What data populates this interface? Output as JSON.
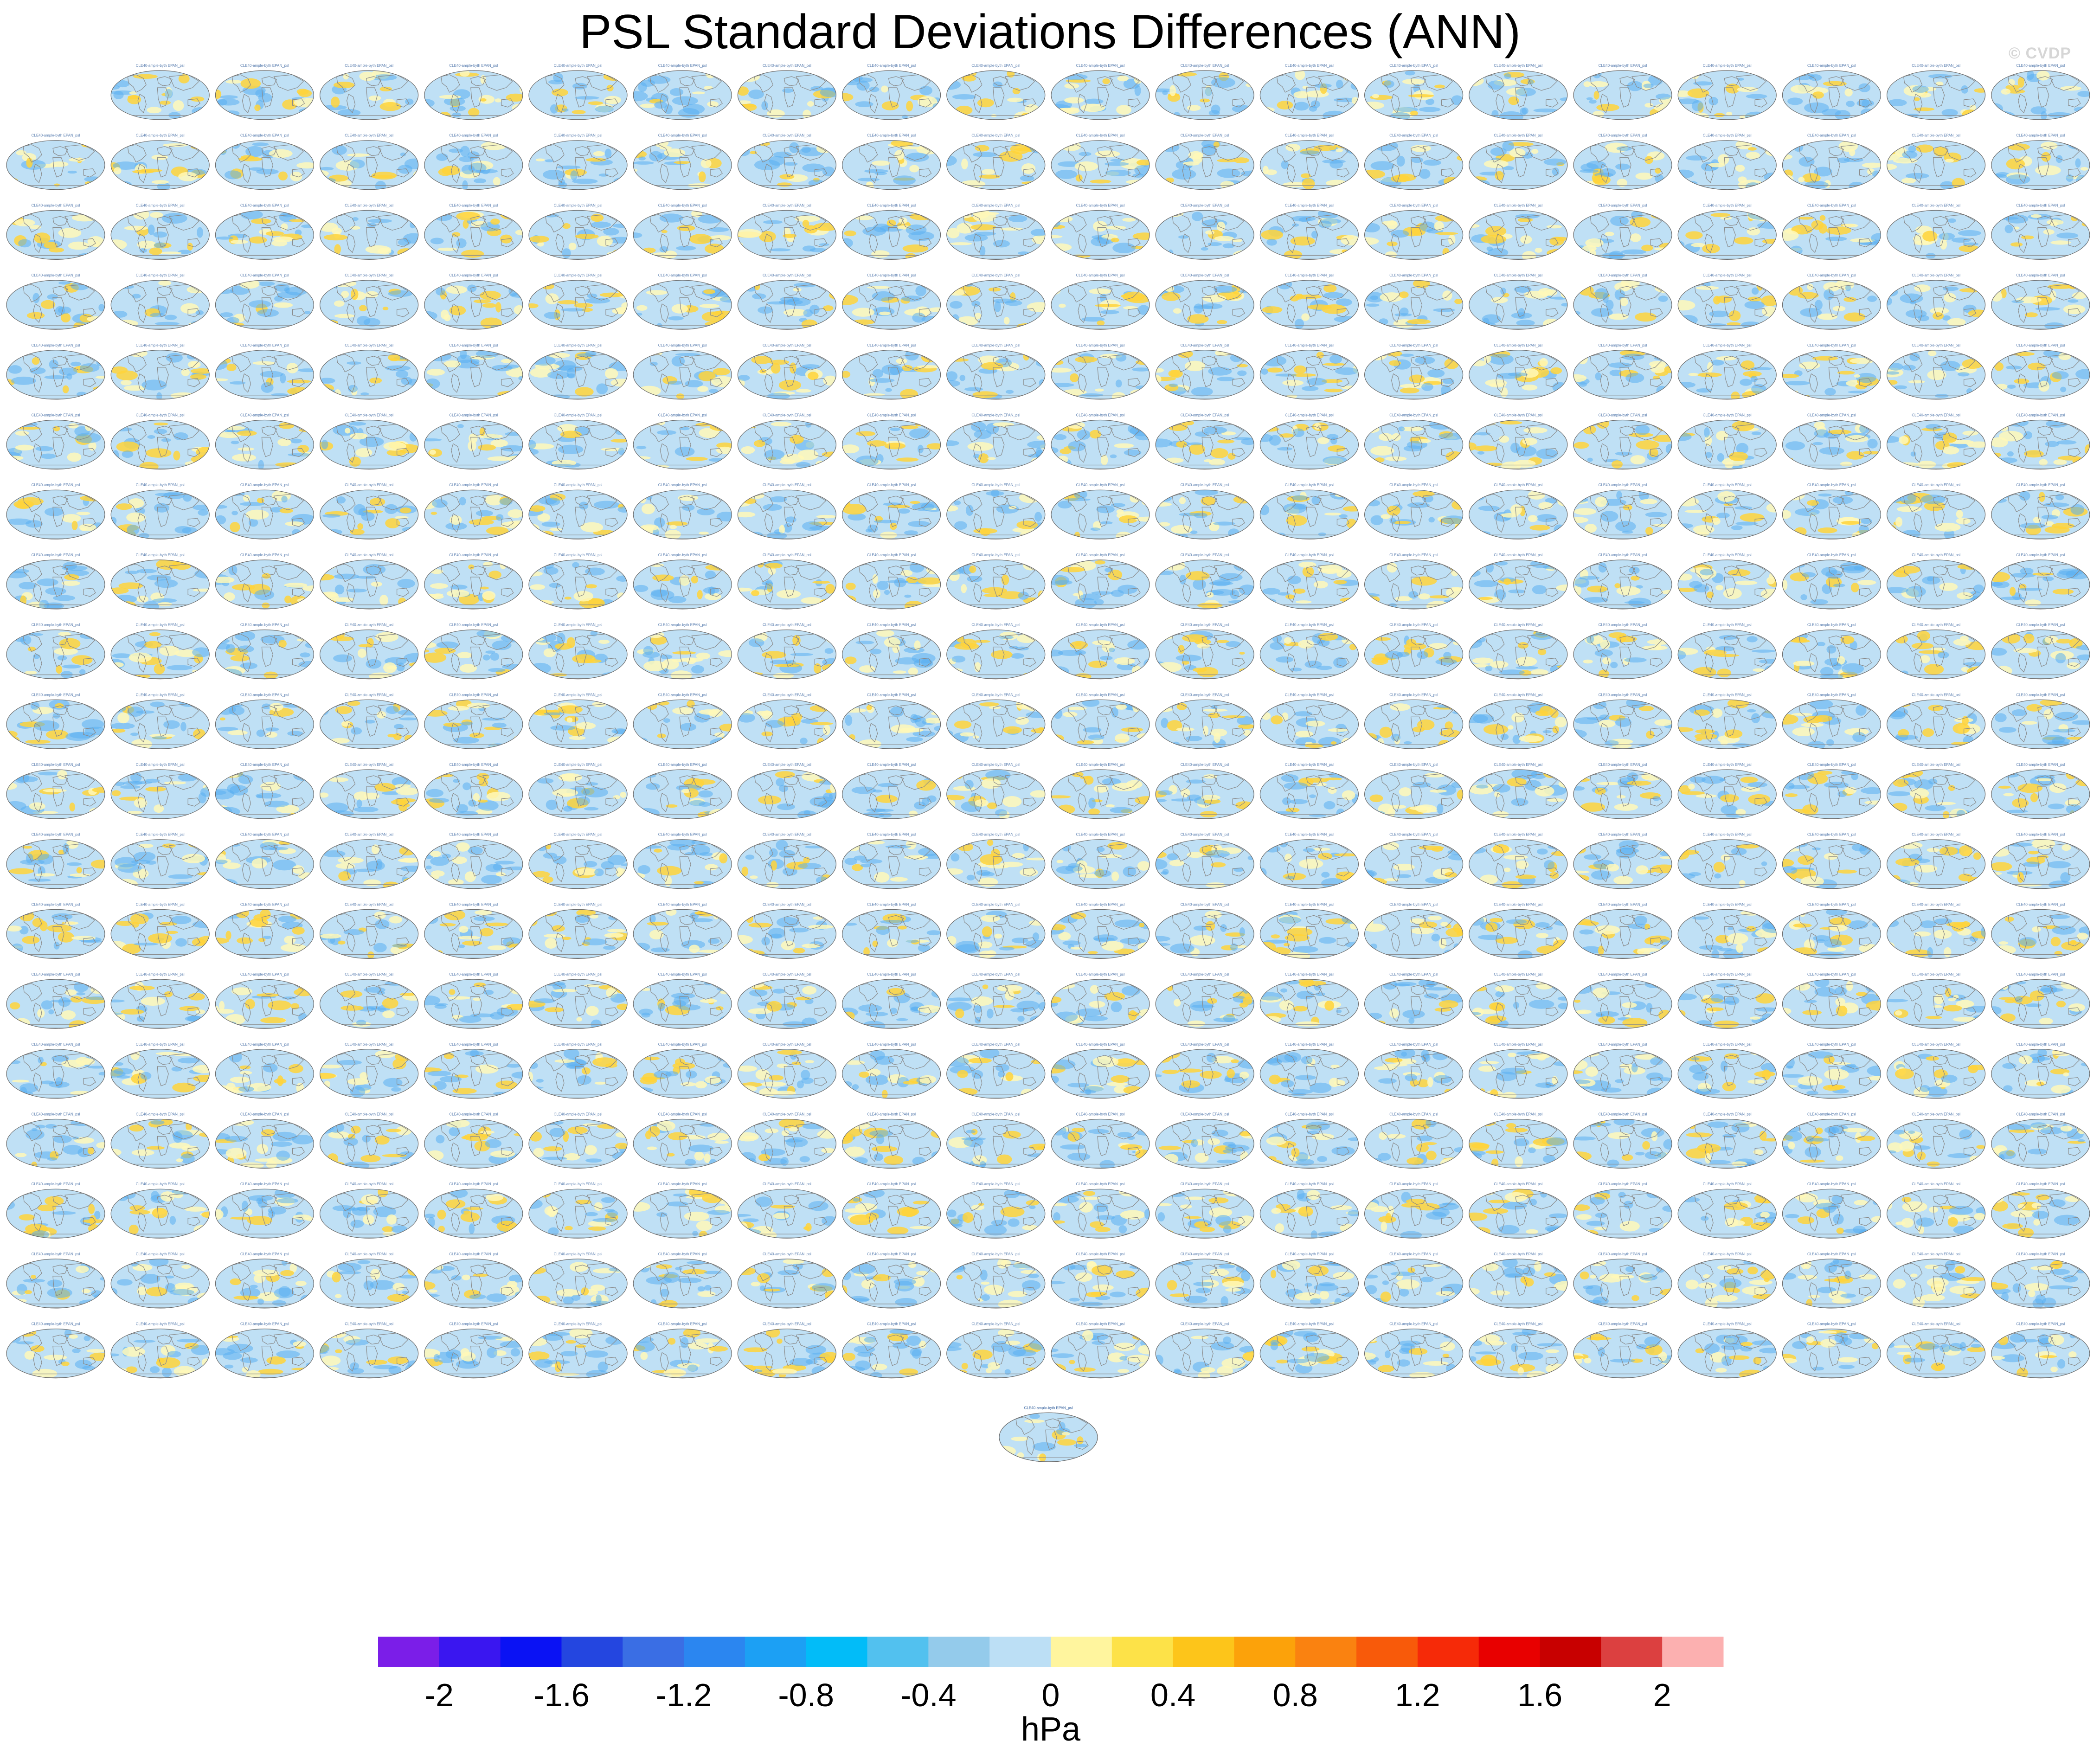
{
  "title": "PSL Standard Deviations Differences (ANN)",
  "watermark": "© CVDP",
  "panel_caption": "CLE40-ample-byth EPAN_psl",
  "panel_count": 381,
  "panel_colors": {
    "ocean": "#bfe0f5",
    "land": "#fff8b8",
    "positive": "#ffd43a",
    "negative": "#5aaef0",
    "coast": "#8a8a8a",
    "outline": "#6a6a6a"
  },
  "chart_data": {
    "type": "heatmap",
    "title": "PSL Standard Deviations Differences (ANN)",
    "colorbar": {
      "label": "hPa",
      "min": -2.2,
      "max": 2.2,
      "step": 0.2,
      "tick_labels": [
        "-2",
        "-1.6",
        "-1.2",
        "-0.8",
        "-0.4",
        "0",
        "0.4",
        "0.8",
        "1.2",
        "1.6",
        "2"
      ],
      "tick_values": [
        -2,
        -1.6,
        -1.2,
        -0.8,
        -0.4,
        0,
        0.4,
        0.8,
        1.2,
        1.6,
        2
      ],
      "colors": [
        "#7b1ee8",
        "#3a16f0",
        "#0a12f4",
        "#2446e0",
        "#3a6ee4",
        "#2b86f0",
        "#1ca0f4",
        "#02bcf8",
        "#52c1ef",
        "#94cbeb",
        "#bcdff5",
        "#fff59e",
        "#fde248",
        "#fdc51a",
        "#fca20a",
        "#fa8210",
        "#f85a0a",
        "#f62a08",
        "#e80000",
        "#c80000",
        "#dc4040",
        "#fcb0b0"
      ]
    }
  }
}
